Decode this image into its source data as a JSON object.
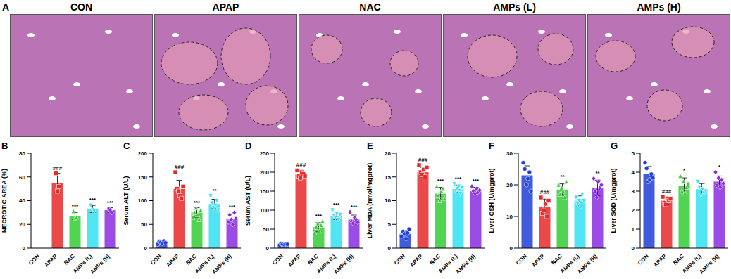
{
  "panel_a": {
    "label": "A",
    "titles": [
      "CON",
      "APAP",
      "NAC",
      "AMPs (L)",
      "AMPs (H)"
    ]
  },
  "chart_data": [
    {
      "type": "bar",
      "label": "B",
      "y_label": "NECROTIC AREA (%)",
      "categories": [
        "CON",
        "APAP",
        "NAC",
        "AMPs (L)",
        "AMPs (H)"
      ],
      "values": [
        0,
        55,
        27,
        33,
        32
      ],
      "errors": [
        0,
        8,
        3,
        3,
        2
      ],
      "points": [
        [],
        [
          63,
          48,
          52
        ],
        [
          31,
          25,
          26
        ],
        [
          36,
          32,
          31
        ],
        [
          33,
          32,
          30
        ]
      ],
      "annotations": [
        null,
        "###",
        "***",
        "***",
        "***"
      ],
      "colors": [
        "#1f3fd6",
        "#e8282a",
        "#33cc33",
        "#33dff0",
        "#8a2be2"
      ],
      "ylim": [
        0,
        80
      ],
      "yticks": [
        0,
        20,
        40,
        60,
        80
      ]
    },
    {
      "type": "bar",
      "label": "C",
      "y_label": "Serum ALT (U/L)",
      "categories": [
        "CON",
        "APAP",
        "NAC",
        "AMPs (L)",
        "AMPs (H)"
      ],
      "values": [
        12,
        125,
        75,
        93,
        62
      ],
      "errors": [
        2,
        18,
        10,
        10,
        10
      ],
      "points": [
        [
          8,
          14,
          12,
          10,
          15,
          11
        ],
        [
          160,
          125,
          120,
          110,
          105,
          130
        ],
        [
          65,
          75,
          85,
          70,
          60,
          80
        ],
        [
          110,
          95,
          85,
          90,
          100,
          80
        ],
        [
          55,
          70,
          60,
          50,
          75,
          62
        ]
      ],
      "annotations": [
        null,
        "###",
        "***",
        "**",
        "***"
      ],
      "colors": [
        "#1f3fd6",
        "#e8282a",
        "#33cc33",
        "#33dff0",
        "#8a2be2"
      ],
      "ylim": [
        0,
        200
      ],
      "yticks": [
        0,
        50,
        100,
        150,
        200
      ]
    },
    {
      "type": "bar",
      "label": "D",
      "y_label": "Serum AST (U/L)",
      "categories": [
        "CON",
        "APAP",
        "NAC",
        "AMPs (L)",
        "AMPs (H)"
      ],
      "values": [
        10,
        195,
        55,
        85,
        75
      ],
      "errors": [
        2,
        10,
        12,
        10,
        12
      ],
      "points": [
        [
          8,
          12,
          10,
          9,
          11,
          10
        ],
        [
          205,
          190,
          185,
          200,
          195,
          190
        ],
        [
          40,
          55,
          65,
          45,
          60,
          70
        ],
        [
          100,
          85,
          80,
          90,
          75,
          88
        ],
        [
          95,
          70,
          65,
          80,
          75,
          68
        ]
      ],
      "annotations": [
        null,
        "###",
        "***",
        "***",
        "***"
      ],
      "colors": [
        "#1f3fd6",
        "#e8282a",
        "#33cc33",
        "#33dff0",
        "#8a2be2"
      ],
      "ylim": [
        0,
        250
      ],
      "yticks": [
        0,
        50,
        100,
        150,
        200,
        250
      ]
    },
    {
      "type": "bar",
      "label": "E",
      "y_label": "Liver MDA (nmol/mgprot)",
      "categories": [
        "CON",
        "APAP",
        "NAC",
        "AMPs (L)",
        "AMPs (H)"
      ],
      "values": [
        3,
        16,
        11.5,
        12.5,
        12
      ],
      "errors": [
        0.7,
        1,
        1.3,
        0.8,
        0.8
      ],
      "points": [
        [
          2.5,
          3.5,
          3,
          2,
          3.2,
          4
        ],
        [
          17.5,
          16,
          15.5,
          16.5,
          15,
          17
        ],
        [
          13,
          11,
          10,
          12,
          12.5,
          10.5
        ],
        [
          13.5,
          12,
          12.5,
          13,
          11.5,
          12.8
        ],
        [
          13,
          12,
          11.5,
          12.5,
          11.8,
          12.2
        ]
      ],
      "annotations": [
        null,
        "###",
        "***",
        "***",
        "***"
      ],
      "colors": [
        "#1f3fd6",
        "#e8282a",
        "#33cc33",
        "#33dff0",
        "#8a2be2"
      ],
      "ylim": [
        0,
        20
      ],
      "yticks": [
        0,
        5,
        10,
        15,
        20
      ]
    },
    {
      "type": "bar",
      "label": "F",
      "y_label": "Liver GSH (U/mgprot)",
      "categories": [
        "CON",
        "APAP",
        "NAC",
        "AMPs (L)",
        "AMPs (H)"
      ],
      "values": [
        23,
        13,
        18.5,
        15,
        19
      ],
      "errors": [
        3,
        2.5,
        1.8,
        1.5,
        2.5
      ],
      "points": [
        [
          27,
          25,
          20,
          22,
          24,
          18
        ],
        [
          16,
          11,
          12,
          14,
          10,
          15
        ],
        [
          20,
          17,
          19,
          18,
          16,
          21
        ],
        [
          16,
          14,
          15,
          13,
          17,
          15
        ],
        [
          22,
          18,
          16,
          21,
          19,
          20
        ]
      ],
      "annotations": [
        null,
        "###",
        "**",
        null,
        "**"
      ],
      "colors": [
        "#1f3fd6",
        "#e8282a",
        "#33cc33",
        "#33dff0",
        "#8a2be2"
      ],
      "ylim": [
        0,
        30
      ],
      "yticks": [
        0,
        10,
        20,
        30
      ]
    },
    {
      "type": "bar",
      "label": "G",
      "y_label": "Liver SOD (U/mgprot)",
      "categories": [
        "CON",
        "APAP",
        "NAC",
        "AMPs (L)",
        "AMPs (H)"
      ],
      "values": [
        3.9,
        2.5,
        3.3,
        3.1,
        3.5
      ],
      "errors": [
        0.4,
        0.2,
        0.4,
        0.3,
        0.3
      ],
      "points": [
        [
          4.5,
          4.2,
          3.5,
          3.6,
          3.9,
          3.7
        ],
        [
          2.7,
          2.4,
          2.3,
          2.6,
          2.5,
          2.6
        ],
        [
          3.8,
          3,
          3.5,
          2.9,
          3.2,
          3.4
        ],
        [
          3.5,
          3.2,
          2.8,
          3.1,
          2.9,
          3
        ],
        [
          4,
          3.3,
          3.7,
          3.2,
          3.6,
          3.4
        ]
      ],
      "annotations": [
        null,
        "###",
        "*",
        null,
        "*"
      ],
      "colors": [
        "#1f3fd6",
        "#e8282a",
        "#33cc33",
        "#33dff0",
        "#8a2be2"
      ],
      "ylim": [
        0,
        5
      ],
      "yticks": [
        0,
        1,
        2,
        3,
        4,
        5
      ]
    }
  ]
}
